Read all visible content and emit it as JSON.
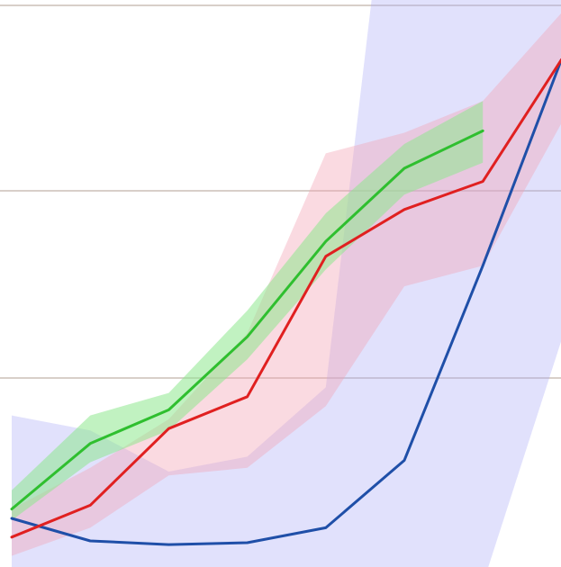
{
  "chart_data": {
    "type": "line",
    "grid": true,
    "legend": "none",
    "x": [
      0,
      1,
      2,
      3,
      4,
      5,
      6,
      7
    ],
    "ylim": [
      0,
      3
    ],
    "gridlines_y": [
      1,
      2,
      3
    ],
    "series": [
      {
        "key": "blue",
        "color": "#1f4fa8",
        "band_color": "#a8a8f5",
        "band_opacity": 0.35,
        "x": [
          0,
          1,
          2,
          3,
          4,
          5,
          6,
          7
        ],
        "values": [
          0.25,
          0.13,
          0.11,
          0.12,
          0.2,
          0.56,
          1.6,
          2.7
        ],
        "lower": [
          -0.1,
          -0.1,
          -0.1,
          -0.1,
          -0.1,
          -0.1,
          -0.1,
          1.2
        ],
        "upper": [
          0.8,
          0.72,
          0.5,
          0.58,
          0.95,
          4.5,
          4.5,
          4.5
        ]
      },
      {
        "key": "red",
        "color": "#e02020",
        "band_color": "#f2a3b3",
        "band_opacity": 0.4,
        "x": [
          0,
          1,
          2,
          3,
          4,
          5,
          6,
          7
        ],
        "values": [
          0.15,
          0.32,
          0.73,
          0.9,
          1.65,
          1.9,
          2.05,
          2.7
        ],
        "lower": [
          0.05,
          0.2,
          0.48,
          0.52,
          0.85,
          1.49,
          1.6,
          2.36
        ],
        "upper": [
          0.3,
          0.52,
          0.78,
          1.24,
          2.2,
          2.31,
          2.48,
          2.95
        ]
      },
      {
        "key": "green",
        "color": "#2fbf2f",
        "band_color": "#8ee88e",
        "band_opacity": 0.55,
        "x": [
          0,
          1,
          2,
          3,
          4,
          5,
          6
        ],
        "values": [
          0.3,
          0.65,
          0.83,
          1.22,
          1.73,
          2.12,
          2.32
        ],
        "lower": [
          0.24,
          0.55,
          0.72,
          1.1,
          1.58,
          1.98,
          2.15
        ],
        "upper": [
          0.4,
          0.8,
          0.92,
          1.36,
          1.88,
          2.25,
          2.48
        ]
      }
    ]
  }
}
